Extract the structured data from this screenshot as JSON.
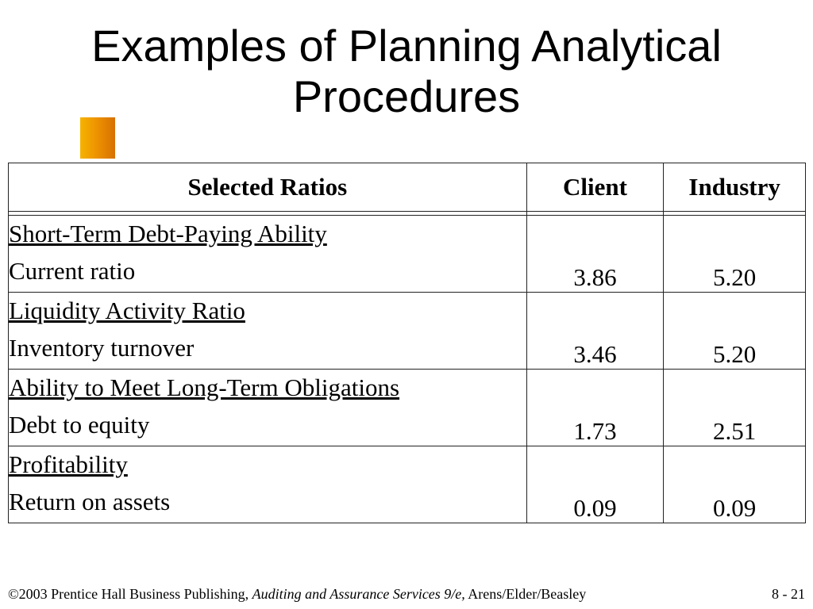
{
  "slide": {
    "title_line1": "Examples of Planning Analytical",
    "title_line2": "Procedures"
  },
  "table": {
    "headers": {
      "ratio": "Selected Ratios",
      "client": "Client",
      "industry": "Industry"
    },
    "rows": [
      {
        "category": "Short-Term Debt-Paying Ability",
        "metric": "Current ratio",
        "client": "3.86",
        "industry": "5.20"
      },
      {
        "category": "Liquidity Activity Ratio",
        "metric": "Inventory turnover",
        "client": "3.46",
        "industry": "5.20"
      },
      {
        "category": "Ability to Meet Long-Term Obligations",
        "metric": "Debt to equity",
        "client": "1.73",
        "industry": "2.51"
      },
      {
        "category": "Profitability",
        "metric": "Return on assets",
        "client": "0.09",
        "industry": "0.09"
      }
    ]
  },
  "footer": {
    "copyright": "©2003 Prentice Hall Business Publishing, ",
    "book_title": "Auditing and Assurance Services 9/e,",
    "authors": " Arens/Elder/Beasley",
    "page_number": "8 - 21"
  },
  "colors": {
    "accent_square": "#ee9400"
  }
}
